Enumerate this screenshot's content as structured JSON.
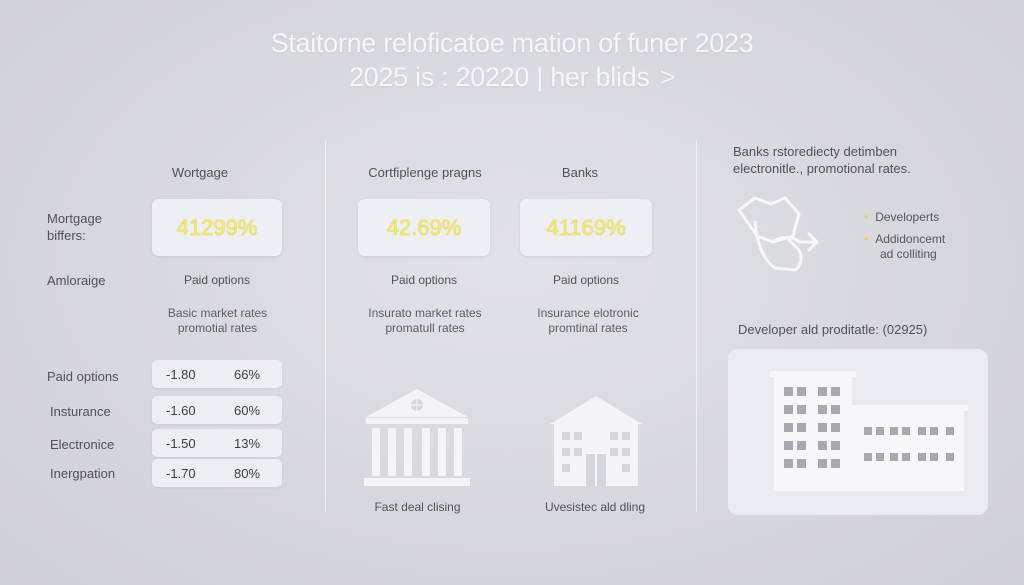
{
  "title": {
    "line1": "Staitorne reloficatoe mation of funer 2023",
    "line2": "2025 is : 20220 | her blids",
    "chevron": ">"
  },
  "mortgage_section": {
    "header": "Wortgage",
    "row_label": "Mortgage biffers:",
    "percent": "41299%",
    "sub_label": "Amloraige",
    "paid": "Paid options",
    "desc_line1": "Basic market rates",
    "desc_line2": "promotial rates"
  },
  "middle_section": {
    "col1_header": "Cortfiplenge pragns",
    "col2_header": "Banks",
    "col1_percent": "42.69%",
    "col2_percent": "41169%",
    "col1_paid": "Paid options",
    "col2_paid": "Paid options",
    "col1_desc_line1": "Insurato market rates",
    "col1_desc_line2": "promatull rates",
    "col2_desc_line1": "Insurance elotronic",
    "col2_desc_line2": "promtinal rates",
    "caption1": "Fast deal clising",
    "caption2": "Uvesistec ald dling"
  },
  "rows": [
    {
      "label": "Paid options",
      "value": "-1.80",
      "percent": "66%"
    },
    {
      "label": "Insturance",
      "value": "-1.60",
      "percent": "60%"
    },
    {
      "label": "Electronice",
      "value": "-1.50",
      "percent": "13%"
    },
    {
      "label": "Inergpation",
      "value": "-1.70",
      "percent": "80%"
    }
  ],
  "right_section": {
    "header_line1": "Banks rstorediecty detimben",
    "header_line2": "electronitle., promotional rates.",
    "bullets": [
      "Developerts",
      "Addidoncemt",
      "ad colliting"
    ],
    "panel_title": "Developer ald proditatle: (02925)"
  },
  "icons": [
    "handshake-icon",
    "bank-building-icon",
    "house-building-icon",
    "office-buildings-icon",
    "bullet-dot-icon"
  ],
  "colors": {
    "accent": "#f3e86a",
    "background": "#d8d9de",
    "card": "#eeeff2"
  }
}
